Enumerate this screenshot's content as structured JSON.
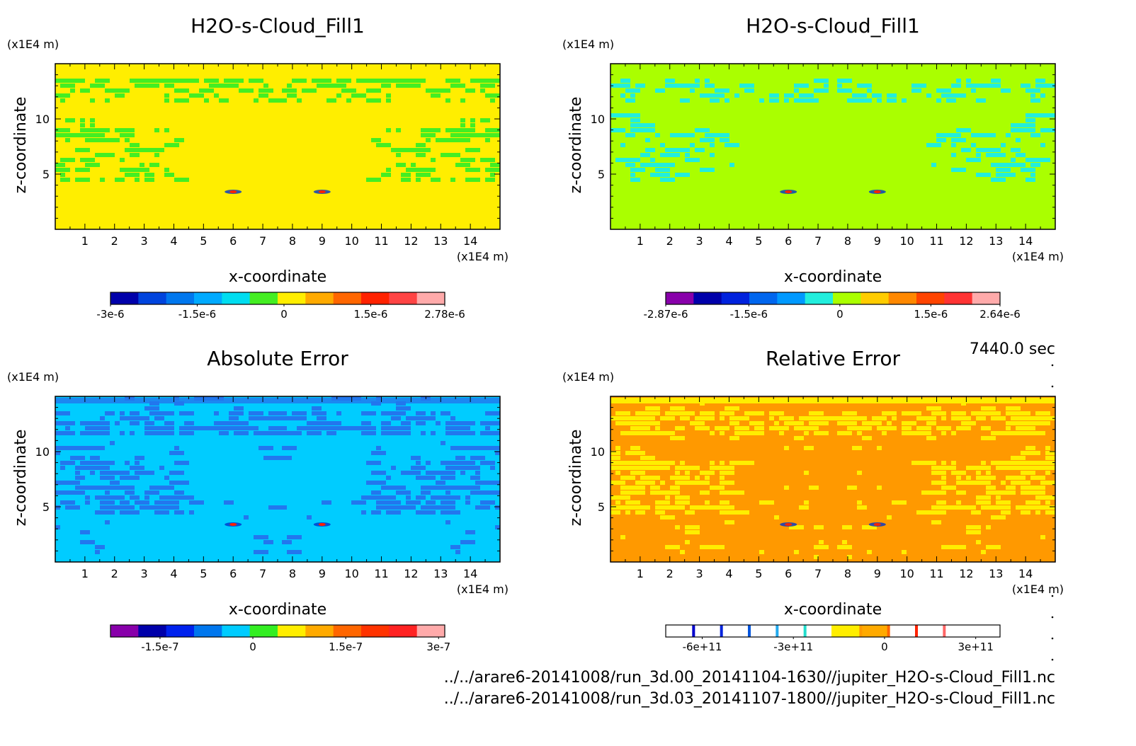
{
  "figure": {
    "time_label": "7440.0 sec",
    "file_paths": [
      "../../arare6-20141008/run_3d.00_20141104-1630//jupiter_H2O-s-Cloud_Fill1.nc",
      "../../arare6-20141008/run_3d.03_20141107-1800//jupiter_H2O-s-Cloud_Fill1.nc"
    ]
  },
  "chart_data": [
    {
      "type": "heatmap",
      "title": "H2O-s-Cloud_Fill1",
      "xlabel": "x-coordinate",
      "ylabel": "z-coordinate",
      "x_unit": "(x1E4 m)",
      "y_unit": "(x1E4 m)",
      "xlim": [
        0,
        15
      ],
      "ylim": [
        0,
        15
      ],
      "x_ticks": [
        1,
        2,
        3,
        4,
        5,
        6,
        7,
        8,
        9,
        10,
        11,
        12,
        13,
        14
      ],
      "y_ticks": [
        5,
        10
      ],
      "background_color": "#ffee00",
      "pattern_color": "#44ee22",
      "colorbar": {
        "colors": [
          "#0000aa",
          "#0044dd",
          "#0077ee",
          "#00aaff",
          "#00ddf0",
          "#44ee22",
          "#ffee00",
          "#ffaa00",
          "#ff6600",
          "#ff2200",
          "#ff4444",
          "#ffaaaa"
        ],
        "labels": [
          "-3e-6",
          "-1.5e-6",
          "0",
          "1.5e-6",
          "2.78e-6"
        ],
        "min": -3e-06,
        "max": 2.78e-06
      }
    },
    {
      "type": "heatmap",
      "title": "H2O-s-Cloud_Fill1",
      "xlabel": "x-coordinate",
      "ylabel": "z-coordinate",
      "x_unit": "(x1E4 m)",
      "y_unit": "(x1E4 m)",
      "xlim": [
        0,
        15
      ],
      "ylim": [
        0,
        15
      ],
      "x_ticks": [
        1,
        2,
        3,
        4,
        5,
        6,
        7,
        8,
        9,
        10,
        11,
        12,
        13,
        14
      ],
      "y_ticks": [
        5,
        10
      ],
      "background_color": "#aaff00",
      "pattern_color": "#22eedd",
      "colorbar": {
        "colors": [
          "#8800aa",
          "#0000aa",
          "#0022dd",
          "#0066ee",
          "#0099ff",
          "#22eedd",
          "#aaff00",
          "#ffcc00",
          "#ff8800",
          "#ff4400",
          "#ff3333",
          "#ffaaaa"
        ],
        "labels": [
          "-2.87e-6",
          "-1.5e-6",
          "0",
          "1.5e-6",
          "2.64e-6"
        ],
        "min": -2.87e-06,
        "max": 2.64e-06
      }
    },
    {
      "type": "heatmap",
      "title": "Absolute Error",
      "xlabel": "x-coordinate",
      "ylabel": "z-coordinate",
      "x_unit": "(x1E4 m)",
      "y_unit": "(x1E4 m)",
      "xlim": [
        0,
        15
      ],
      "ylim": [
        0,
        15
      ],
      "x_ticks": [
        1,
        2,
        3,
        4,
        5,
        6,
        7,
        8,
        9,
        10,
        11,
        12,
        13,
        14
      ],
      "y_ticks": [
        5,
        10
      ],
      "background_color": "#00ccff",
      "pattern_color": "#2277ee",
      "colorbar": {
        "colors": [
          "#8800aa",
          "#0000aa",
          "#0022ee",
          "#0077ee",
          "#00ccff",
          "#33ee22",
          "#ffee00",
          "#ffaa00",
          "#ff6600",
          "#ff3300",
          "#ff2222",
          "#ffaaaa"
        ],
        "labels": [
          "-1.5e-7",
          "0",
          "1.5e-7",
          "3e-7"
        ],
        "min": -2.3e-07,
        "max": 3.1e-07
      }
    },
    {
      "type": "heatmap",
      "title": "Relative Error",
      "xlabel": "x-coordinate",
      "ylabel": "z-coordinate",
      "x_unit": "(x1E4 m)",
      "y_unit": "(x1E4 m)",
      "xlim": [
        0,
        15
      ],
      "ylim": [
        0,
        15
      ],
      "x_ticks": [
        1,
        2,
        3,
        4,
        5,
        6,
        7,
        8,
        9,
        10,
        11,
        12,
        13,
        14
      ],
      "y_ticks": [
        5,
        10
      ],
      "background_color": "#ff9900",
      "pattern_color": "#ffee00",
      "colorbar": {
        "colors": [
          "#ffffff",
          "#ffffff",
          "#ffffff",
          "#ffffff",
          "#ffffff",
          "#ffffff",
          "#ffee00",
          "#ffaa00",
          "#ffffff",
          "#ffffff",
          "#ffffff",
          "#ffffff"
        ],
        "divider_colors": [
          "#0000cc",
          "#0022dd",
          "#0055dd",
          "#22aaee",
          "#22ddcc",
          "#ffee00",
          "#ff9900",
          "#ff6600",
          "#ff2200",
          "#ff6666",
          "#ffffff"
        ],
        "labels": [
          "-6e+11",
          "-3e+11",
          "0",
          "3e+11"
        ],
        "min": -720000000000.0,
        "max": 380000000000.0
      }
    }
  ]
}
